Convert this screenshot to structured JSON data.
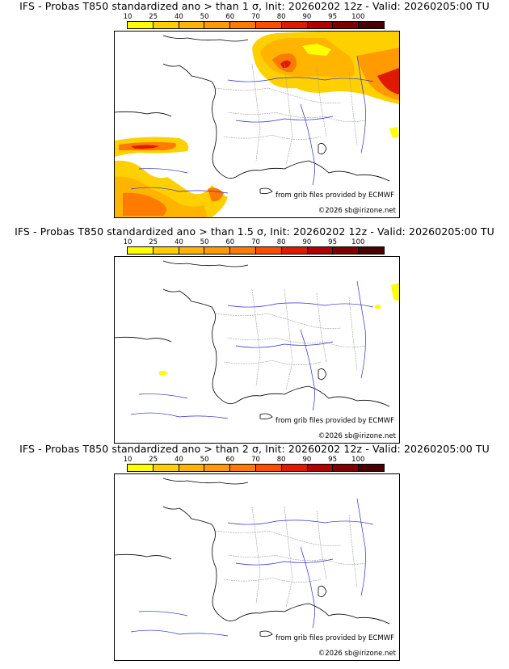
{
  "legend": {
    "ticks": [
      "10",
      "25",
      "40",
      "50",
      "60",
      "70",
      "80",
      "90",
      "95",
      "100"
    ],
    "colors": [
      "#ffff00",
      "#ffd000",
      "#ffb400",
      "#ff9a00",
      "#ff7a00",
      "#ff4d00",
      "#e01a00",
      "#b00000",
      "#800000",
      "#4a0000"
    ]
  },
  "panels": [
    {
      "title": "IFS - Probas T850  standardized ano > than 1 σ, Init: 20260202 12z - Valid: 20260205:00 TU"
    },
    {
      "title": "IFS - Probas T850  standardized ano > than 1.5 σ, Init: 20260202 12z - Valid: 20260205:00 TU"
    },
    {
      "title": "IFS - Probas T850  standardized ano > than 2 σ, Init: 20260202 12z - Valid: 20260205:00 TU"
    }
  ],
  "credits": {
    "source": "from grib files provided by ECMWF",
    "copyright": "©2026 sb@irizone.net"
  }
}
